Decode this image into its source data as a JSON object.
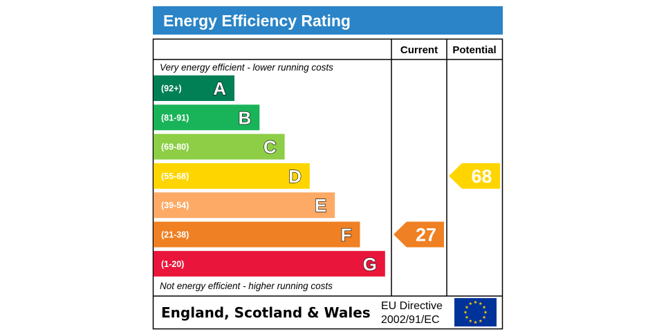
{
  "chart_data": {
    "type": "bar",
    "title": "Energy Efficiency Rating",
    "columns": {
      "current": "Current",
      "potential": "Potential"
    },
    "top_note": "Very energy efficient - lower running costs",
    "bottom_note": "Not energy efficient - higher running costs",
    "categories": [
      "A",
      "B",
      "C",
      "D",
      "E",
      "F",
      "G"
    ],
    "bands": [
      {
        "letter": "A",
        "range": "(92+)",
        "min": 92,
        "max": 100,
        "color": "#008054"
      },
      {
        "letter": "B",
        "range": "(81-91)",
        "min": 81,
        "max": 91,
        "color": "#19b459"
      },
      {
        "letter": "C",
        "range": "(69-80)",
        "min": 69,
        "max": 80,
        "color": "#8dce46"
      },
      {
        "letter": "D",
        "range": "(55-68)",
        "min": 55,
        "max": 68,
        "color": "#ffd500"
      },
      {
        "letter": "E",
        "range": "(39-54)",
        "min": 39,
        "max": 54,
        "color": "#fcaa65"
      },
      {
        "letter": "F",
        "range": "(21-38)",
        "min": 21,
        "max": 38,
        "color": "#ef8023"
      },
      {
        "letter": "G",
        "range": "(1-20)",
        "min": 1,
        "max": 20,
        "color": "#e9153b"
      }
    ],
    "current": {
      "value": 27,
      "band": "F",
      "color": "#ef8023"
    },
    "potential": {
      "value": 68,
      "band": "D",
      "color": "#ffd500"
    },
    "footer": {
      "region": "England, Scotland & Wales",
      "directive_line1": "EU Directive",
      "directive_line2": "2002/91/EC"
    },
    "colors": {
      "title_bar": "#2a84c7",
      "eu_flag": "#003399",
      "eu_stars": "#ffcc00"
    }
  }
}
